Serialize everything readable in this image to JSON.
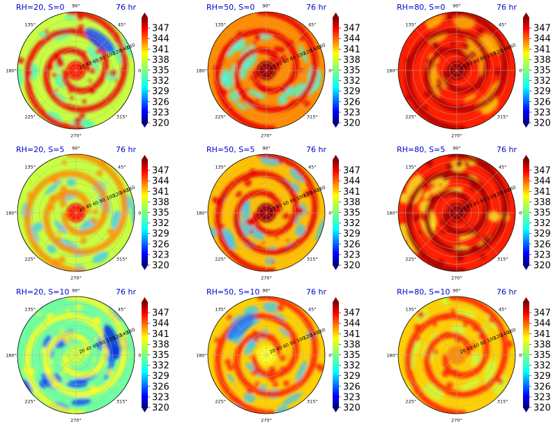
{
  "chart_data": [
    {
      "type": "heatmap",
      "title": "RH=20, S=0",
      "time_label": "76 hr",
      "pattern": {
        "core": "red",
        "field": "yellow-green",
        "cool": "blue-green",
        "spiral": "strong-red",
        "accent": "blue-arc"
      }
    },
    {
      "type": "heatmap",
      "title": "RH=50, S=0",
      "time_label": "76 hr",
      "pattern": {
        "core": "dark-red",
        "field": "orange",
        "cool": "cyan",
        "spiral": "red-spiral"
      }
    },
    {
      "type": "heatmap",
      "title": "RH=80, S=0",
      "time_label": "76 hr",
      "pattern": {
        "core": "dark-red",
        "field": "red",
        "cool": "orange-yellow",
        "spiral": "dark-red-rings"
      }
    },
    {
      "type": "heatmap",
      "title": "RH=20, S=5",
      "time_label": "76 hr",
      "pattern": {
        "core": "red",
        "field": "yellow-green",
        "cool": "cyan-blue",
        "spiral": "orange"
      }
    },
    {
      "type": "heatmap",
      "title": "RH=50, S=5",
      "time_label": "76 hr",
      "pattern": {
        "core": "dark-red",
        "field": "orange-yellow",
        "cool": "cyan-blue",
        "spiral": "red-spiral"
      }
    },
    {
      "type": "heatmap",
      "title": "RH=80, S=5",
      "time_label": "76 hr",
      "pattern": {
        "core": "dark-red",
        "field": "red",
        "cool": "yellow",
        "spiral": "dark-red"
      }
    },
    {
      "type": "heatmap",
      "title": "RH=20, S=10",
      "time_label": "76 hr",
      "pattern": {
        "core": "yellow-green",
        "field": "cyan-green",
        "cool": "blue",
        "spiral": "yellow",
        "accent": "blue-ne"
      }
    },
    {
      "type": "heatmap",
      "title": "RH=50, S=10",
      "time_label": "76 hr",
      "pattern": {
        "core": "yellow",
        "field": "yellow-orange",
        "cool": "cyan-blue",
        "spiral": "red",
        "accent": "blue-nw"
      }
    },
    {
      "type": "heatmap",
      "title": "RH=80, S=10",
      "time_label": "76 hr",
      "pattern": {
        "core": "orange",
        "field": "yellow-orange",
        "cool": "yellow-green",
        "spiral": "red"
      }
    }
  ],
  "angle_labels": [
    "90°",
    "45°",
    "0°",
    "315°",
    "270°",
    "225°",
    "180°",
    "135°"
  ],
  "radial_labels": [
    "20",
    "40",
    "60",
    "80",
    "100",
    "120",
    "140",
    "160"
  ],
  "colorbar": {
    "ticks": [
      "347",
      "344",
      "341",
      "338",
      "335",
      "332",
      "329",
      "326",
      "323",
      "320"
    ],
    "min": 320,
    "max": 350,
    "colormap": "jet"
  }
}
